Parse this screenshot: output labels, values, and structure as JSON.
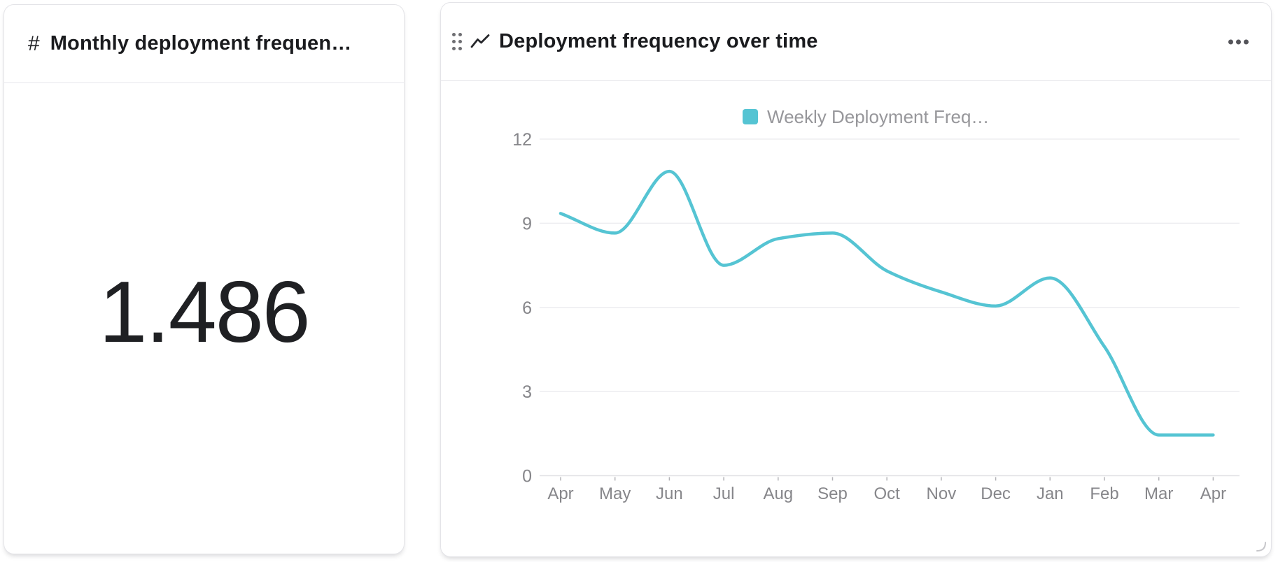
{
  "metric_card": {
    "icon": "#",
    "title": "Monthly deployment frequen…",
    "value": "1.486"
  },
  "chart_card": {
    "title": "Deployment frequency over time"
  },
  "chart_data": {
    "type": "line",
    "title": "Deployment frequency over time",
    "categories": [
      "Apr",
      "May",
      "Jun",
      "Jul",
      "Aug",
      "Sep",
      "Oct",
      "Nov",
      "Dec",
      "Jan",
      "Feb",
      "Mar",
      "Apr"
    ],
    "series": [
      {
        "name": "Weekly Deployment Freq…",
        "values": [
          9.35,
          8.65,
          10.85,
          7.5,
          8.45,
          8.65,
          7.3,
          6.55,
          6.05,
          7.05,
          4.6,
          1.45,
          1.45
        ]
      }
    ],
    "ylim": [
      0,
      12
    ],
    "yticks": [
      0,
      3,
      6,
      9,
      12
    ],
    "grid": true,
    "legend_position": "top",
    "colors": {
      "line": "#55c4d3",
      "legend_swatch": "#55c4d3",
      "legend_text": "#97979b",
      "axis_label": "#86868a",
      "gridline": "#ededf0",
      "axis_line": "#e2e2e6",
      "tick": "#b4b4b8"
    }
  }
}
